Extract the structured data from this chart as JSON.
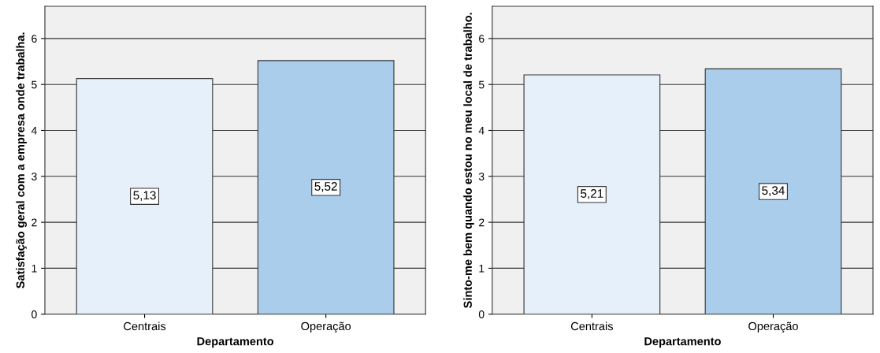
{
  "chart_data": [
    {
      "type": "bar",
      "xlabel": "Departamento",
      "ylabel": "Satisfação geral com a empresa onde trabalha.",
      "categories": [
        "Centrais",
        "Operação"
      ],
      "values": [
        5.13,
        5.52
      ],
      "value_labels": [
        "5,13",
        "5,52"
      ],
      "colors": [
        "#e6f0fb",
        "#aacdeb"
      ],
      "ylim": [
        0,
        6.7
      ],
      "yticks": [
        0,
        1,
        2,
        3,
        4,
        5,
        6
      ],
      "grid": "y"
    },
    {
      "type": "bar",
      "xlabel": "Departamento",
      "ylabel": "Sinto-me bem quando estou no meu local de trabalho.",
      "categories": [
        "Centrais",
        "Operação"
      ],
      "values": [
        5.21,
        5.34
      ],
      "value_labels": [
        "5,21",
        "5,34"
      ],
      "colors": [
        "#e6f0fb",
        "#aacdeb"
      ],
      "ylim": [
        0,
        6.7
      ],
      "yticks": [
        0,
        1,
        2,
        3,
        4,
        5,
        6
      ],
      "grid": "y"
    }
  ]
}
